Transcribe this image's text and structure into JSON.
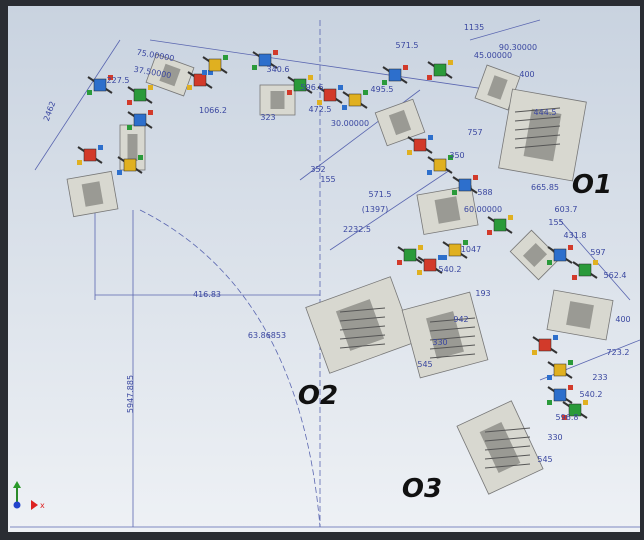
{
  "dimensions": [
    "2462",
    "75.00000",
    "37.50000",
    "227.5",
    "340.6",
    "596.6",
    "1066.2",
    "323",
    "472.5",
    "30.00000",
    "495.5",
    "571.5",
    "1135",
    "45.00000",
    "90.30000",
    "400",
    "444.5",
    "757",
    "350",
    "352",
    "155",
    "571.5",
    "(1397)",
    "665.85",
    "603.7",
    "588",
    "60.00000",
    "2232.5",
    "1047",
    "155",
    "431.8",
    "597",
    "562.4",
    "540.2",
    "193",
    "400",
    "942",
    "330",
    "545",
    "723.2",
    "233",
    "540.2",
    "596.8",
    "330",
    "545",
    "416.83",
    "63.86853",
    "5947.885"
  ],
  "labels": [
    "O1",
    "O2",
    "O3"
  ],
  "axis": {
    "x": "x"
  }
}
